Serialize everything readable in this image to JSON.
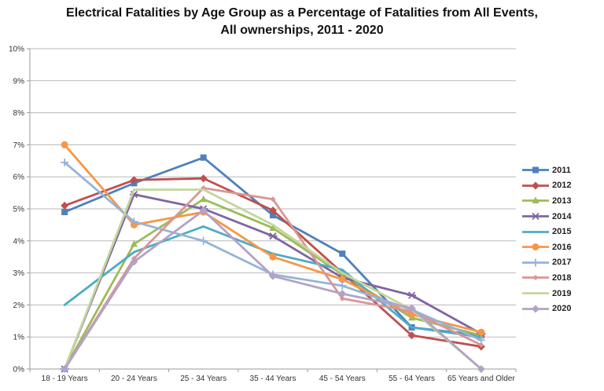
{
  "chart_data": {
    "type": "line",
    "title": "Electrical Fatalities by Age Group as a Percentage of Fatalities from All Events, All ownerships, 2011 - 2020",
    "categories": [
      "18 - 19 Years",
      "20 - 24 Years",
      "25 - 34 Years",
      "35 - 44 Years",
      "45 - 54 Years",
      "55 - 64 Years",
      "65 Years and Older"
    ],
    "y_ticks": [
      "0%",
      "1%",
      "2%",
      "3%",
      "4%",
      "5%",
      "6%",
      "7%",
      "8%",
      "9%",
      "10%"
    ],
    "ylim": [
      0,
      10
    ],
    "grid": true,
    "legend_position": "right",
    "axis_color": "#9a9a9a",
    "grid_color": "#b8b8b8",
    "tick_label_color": "#333333",
    "series": [
      {
        "name": "2011",
        "color": "#4F81BD",
        "marker": "square",
        "values": [
          4.9,
          5.8,
          6.6,
          4.8,
          3.6,
          1.3,
          1.05
        ]
      },
      {
        "name": "2012",
        "color": "#C0504D",
        "marker": "diamond",
        "values": [
          5.1,
          5.9,
          5.95,
          4.95,
          3.0,
          1.05,
          0.7
        ]
      },
      {
        "name": "2013",
        "color": "#9BBB59",
        "marker": "triangle",
        "values": [
          0.0,
          3.9,
          5.3,
          4.4,
          2.95,
          1.6,
          1.05
        ]
      },
      {
        "name": "2014",
        "color": "#8064A2",
        "marker": "x",
        "values": [
          0.0,
          5.45,
          5.0,
          4.15,
          2.85,
          2.3,
          1.1
        ]
      },
      {
        "name": "2015",
        "color": "#4BACC6",
        "marker": "none",
        "values": [
          2.0,
          3.65,
          4.45,
          3.6,
          3.1,
          1.3,
          1.0
        ]
      },
      {
        "name": "2016",
        "color": "#F79646",
        "marker": "circle",
        "values": [
          7.0,
          4.5,
          4.9,
          3.5,
          2.8,
          1.7,
          1.15
        ]
      },
      {
        "name": "2017",
        "color": "#95B3D7",
        "marker": "plus",
        "values": [
          6.45,
          4.6,
          4.0,
          2.95,
          2.6,
          1.85,
          0.9
        ]
      },
      {
        "name": "2018",
        "color": "#D99694",
        "marker": "diamond-small",
        "values": [
          0.0,
          3.45,
          5.65,
          5.3,
          2.2,
          1.8,
          0.75
        ]
      },
      {
        "name": "2019",
        "color": "#C3D69B",
        "marker": "none",
        "values": [
          0.0,
          5.6,
          5.6,
          4.5,
          3.0,
          1.85,
          0.0
        ]
      },
      {
        "name": "2020",
        "color": "#B3A2C7",
        "marker": "diamond",
        "values": [
          0.0,
          3.35,
          4.95,
          2.9,
          2.35,
          1.9,
          0.0
        ]
      }
    ]
  }
}
